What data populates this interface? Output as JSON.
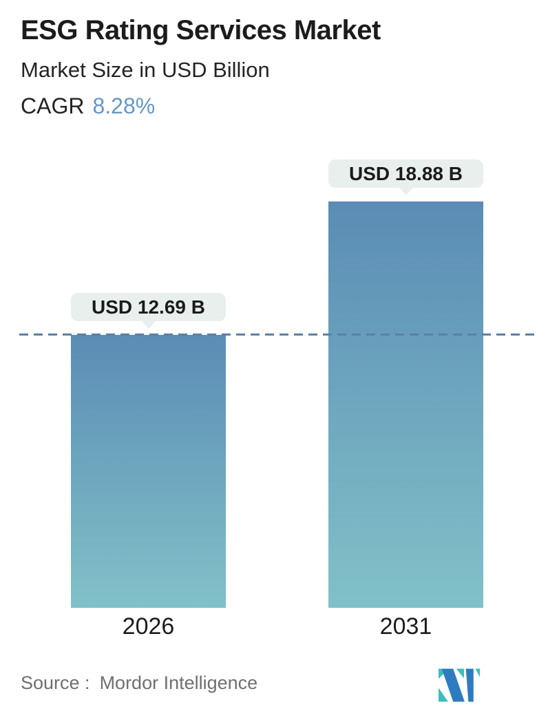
{
  "header": {
    "title": "ESG Rating Services Market",
    "subtitle": "Market Size in USD Billion",
    "cagr_label": "CAGR",
    "cagr_value": "8.28%"
  },
  "chart_data": {
    "type": "bar",
    "categories": [
      "2026",
      "2031"
    ],
    "values": [
      12.69,
      18.88
    ],
    "value_labels": [
      "USD 12.69 B",
      "USD 18.88 B"
    ],
    "title": "ESG Rating Services Market",
    "subtitle": "Market Size in USD Billion",
    "cagr": "8.28%",
    "xlabel": "",
    "ylabel": "Market Size in USD Billion",
    "ylim": [
      0,
      20
    ],
    "grid": false,
    "legend": false,
    "reference_line": {
      "at_value": 12.69,
      "style": "dashed",
      "span": "full-width"
    },
    "colors": {
      "bar_gradient_top": "#5b8cb5",
      "bar_gradient_bottom": "#81c1c8",
      "dashed_line": "#5a81a5",
      "bubble_bg": "#e8efed",
      "cagr_accent": "#6797c5"
    }
  },
  "footer": {
    "source_label": "Source :",
    "source_value": "Mordor Intelligence",
    "logo_name": "mordor-intelligence-logo",
    "logo_colors": {
      "teal": "#3bbcbe",
      "blue": "#2e7cbf"
    }
  }
}
